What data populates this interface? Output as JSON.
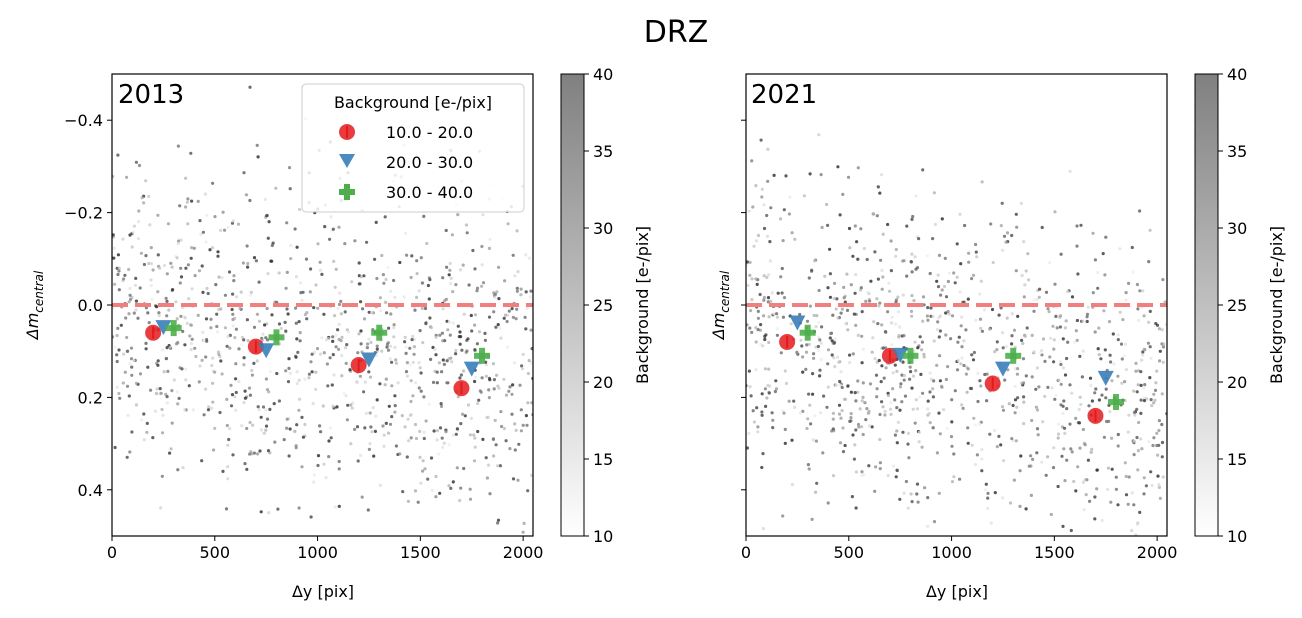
{
  "suptitle": "DRZ",
  "colors": {
    "red": "#e41a1c",
    "blue": "#377eb8",
    "green": "#4daf4a",
    "zero_line": "#f08080",
    "scatter": "#000000"
  },
  "chart_data": [
    {
      "type": "scatter",
      "panel_label": "2013",
      "xlabel": "Δy [pix]",
      "ylabel": "Δm_central",
      "ylabel_main": "Δm",
      "ylabel_sub": "central",
      "xlim": [
        0,
        2048
      ],
      "ylim": [
        0.5,
        -0.5
      ],
      "xticks": [
        0,
        500,
        1000,
        1500,
        2000
      ],
      "xtick_labels": [
        "0",
        "500",
        "1000",
        "1500",
        "2000"
      ],
      "yticks": [
        -0.4,
        -0.2,
        0.0,
        0.2,
        0.4
      ],
      "ytick_labels": [
        "−0.4",
        "−0.2",
        "0.0",
        "0.2",
        "0.4"
      ],
      "reference_line": 0.0,
      "legend": {
        "title": "Background [e-/pix]",
        "entries": [
          "10.0 - 20.0",
          "20.0 - 30.0",
          "30.0 - 40.0"
        ]
      },
      "series": [
        {
          "name": "10.0 - 20.0",
          "marker": "circle",
          "x": [
            200,
            700,
            1200,
            1700
          ],
          "y": [
            0.06,
            0.09,
            0.13,
            0.18
          ]
        },
        {
          "name": "20.0 - 30.0",
          "marker": "triangle-down",
          "x": [
            250,
            750,
            1250,
            1750
          ],
          "y": [
            0.05,
            0.1,
            0.12,
            0.14
          ]
        },
        {
          "name": "30.0 - 40.0",
          "marker": "plus",
          "x": [
            300,
            800,
            1300,
            1800
          ],
          "y": [
            0.05,
            0.07,
            0.06,
            0.11
          ]
        }
      ],
      "colorbar": {
        "label": "Background [e-/pix]",
        "range": [
          10,
          40
        ],
        "ticks": [
          "10",
          "15",
          "20",
          "25",
          "30",
          "35",
          "40"
        ]
      }
    },
    {
      "type": "scatter",
      "panel_label": "2021",
      "xlabel": "Δy [pix]",
      "ylabel": "Δm_central",
      "ylabel_main": "Δm",
      "ylabel_sub": "central",
      "xlim": [
        0,
        2048
      ],
      "ylim": [
        0.5,
        -0.5
      ],
      "xticks": [
        0,
        500,
        1000,
        1500,
        2000
      ],
      "xtick_labels": [
        "0",
        "500",
        "1000",
        "1500",
        "2000"
      ],
      "yticks": [
        -0.4,
        -0.2,
        0.0,
        0.2,
        0.4
      ],
      "ytick_labels": [],
      "reference_line": 0.0,
      "series": [
        {
          "name": "10.0 - 20.0",
          "marker": "circle",
          "x": [
            200,
            700,
            1200,
            1700
          ],
          "y": [
            0.08,
            0.11,
            0.17,
            0.24
          ]
        },
        {
          "name": "20.0 - 30.0",
          "marker": "triangle-down",
          "x": [
            250,
            750,
            1250,
            1750
          ],
          "y": [
            0.04,
            0.11,
            0.14,
            0.16
          ]
        },
        {
          "name": "30.0 - 40.0",
          "marker": "plus",
          "x": [
            300,
            800,
            1300,
            1800
          ],
          "y": [
            0.06,
            0.11,
            0.11,
            0.21
          ]
        }
      ],
      "colorbar": {
        "label": "Background [e-/pix]",
        "range": [
          10,
          40
        ],
        "ticks": [
          "10",
          "15",
          "20",
          "25",
          "30",
          "35",
          "40"
        ]
      }
    }
  ]
}
